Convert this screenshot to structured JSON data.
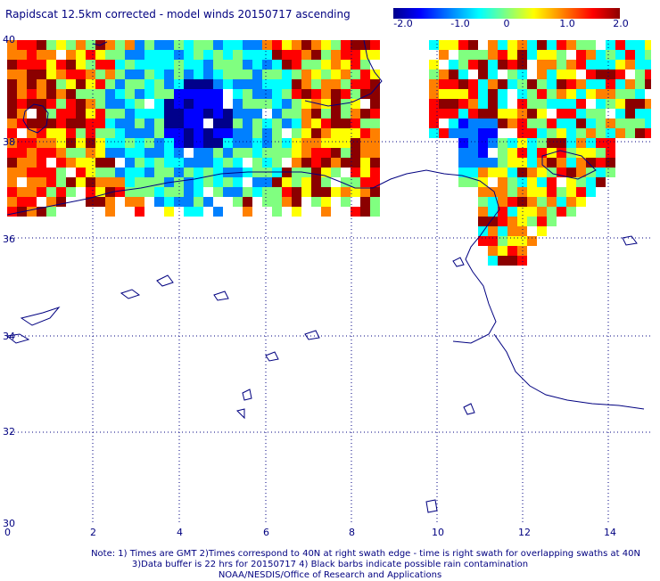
{
  "title": "Rapidscat 12.5km corrected - model winds 20150717 ascending",
  "colorbar": {
    "ticks": [
      "-2.0",
      "-1.0",
      "0",
      "1.0",
      "2.0"
    ],
    "min": -2.0,
    "max": 2.0,
    "colors": [
      "#00008b",
      "#0000ff",
      "#0080ff",
      "#00ffff",
      "#80ff80",
      "#ffff00",
      "#ff8000",
      "#ff0000",
      "#8b0000"
    ]
  },
  "axes": {
    "x_ticks": [
      "0",
      "2",
      "4",
      "6",
      "8",
      "10",
      "12",
      "14"
    ],
    "y_ticks": [
      "40",
      "38",
      "36",
      "34",
      "32",
      "30"
    ],
    "x_range": [
      0,
      15
    ],
    "y_range": [
      30,
      40
    ]
  },
  "notes": {
    "line1": "Note: 1) Times are GMT 2)Times correspond to 40N at right swath edge - time is right swath for overlapping swaths at 40N",
    "line2": "3)Data buffer is 22 hrs for 20150717 4) Black barbs indicate possible rain contamination",
    "line3": "NOAA/NESDIS/Office of Research and Applications"
  }
}
